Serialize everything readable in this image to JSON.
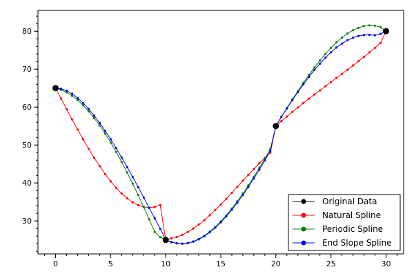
{
  "chart_data": {
    "type": "line",
    "title": "",
    "xlabel": "",
    "ylabel": "",
    "xlim": [
      -1.6,
      31.6
    ],
    "ylim": [
      21.3,
      85.5
    ],
    "x_ticks": [
      0,
      5,
      10,
      15,
      20,
      25,
      30
    ],
    "y_ticks": [
      30,
      40,
      50,
      60,
      70,
      80
    ],
    "x_minor_step": 1,
    "y_minor_step": 2,
    "grid": false,
    "legend_position": "bottom-right",
    "original_data": {
      "name": "Original Data",
      "color": "#000000",
      "x": [
        0,
        10,
        20,
        30
      ],
      "y": [
        65,
        25,
        55,
        80
      ]
    },
    "series": [
      {
        "name": "Natural Spline",
        "color": "#ff0000",
        "x": [
          0,
          0.5,
          1,
          1.5,
          2,
          2.5,
          3,
          3.5,
          4,
          4.5,
          5,
          5.5,
          6,
          6.5,
          7,
          7.5,
          8,
          8.5,
          9,
          9.5,
          10,
          10.5,
          11,
          11.5,
          12,
          12.5,
          13,
          13.5,
          14,
          14.5,
          15,
          15.5,
          16,
          16.5,
          17,
          17.5,
          18,
          18.5,
          19,
          19.5,
          20,
          20.5,
          21,
          21.5,
          22,
          22.5,
          23,
          23.5,
          24,
          24.5,
          25,
          25.5,
          26,
          26.5,
          27,
          27.5,
          28,
          28.5,
          29,
          29.5,
          30
        ],
        "y": [
          65,
          62.22,
          59.46,
          56.74,
          54.08,
          51.5,
          49.02,
          46.65,
          44.42,
          42.34,
          40.44,
          38.73,
          37.22,
          35.95,
          34.92,
          34.16,
          33.68,
          33.52,
          33.67,
          34.18,
          25,
          25.39,
          25.76,
          26.33,
          27.08,
          27.99,
          29.04,
          30.22,
          31.5,
          32.88,
          34.33,
          35.85,
          37.4,
          38.98,
          40.57,
          42.14,
          43.69,
          45.2,
          46.64,
          48.02,
          55,
          56.3,
          57.49,
          58.72,
          59.91,
          61.07,
          62.2,
          63.31,
          64.41,
          65.5,
          66.58,
          67.66,
          68.75,
          69.85,
          70.96,
          72.09,
          73.25,
          74.43,
          75.65,
          76.9,
          80
        ]
      },
      {
        "name": "Periodic Spline",
        "color": "#008000",
        "x": [
          0,
          0.5,
          1,
          1.5,
          2,
          2.5,
          3,
          3.5,
          4,
          4.5,
          5,
          5.5,
          6,
          6.5,
          7,
          7.5,
          8,
          8.5,
          9,
          9.5,
          10,
          10.5,
          11,
          11.5,
          12,
          12.5,
          13,
          13.5,
          14,
          14.5,
          15,
          15.5,
          16,
          16.5,
          17,
          17.5,
          18,
          18.5,
          19,
          19.5,
          20,
          20.5,
          21,
          21.5,
          22,
          22.5,
          23,
          23.5,
          24,
          24.5,
          25,
          25.5,
          26,
          26.5,
          27,
          27.5,
          28,
          28.5,
          29,
          29.5,
          30
        ],
        "y": [
          65,
          64.57,
          63.9,
          62.99,
          61.85,
          60.48,
          58.9,
          57.12,
          55.15,
          53.0,
          50.67,
          48.18,
          45.54,
          42.76,
          39.84,
          36.81,
          33.66,
          30.42,
          27.1,
          25.71,
          25,
          24.4,
          24.07,
          24.0,
          24.18,
          24.6,
          25.25,
          26.11,
          27.18,
          28.44,
          29.88,
          31.49,
          33.26,
          35.17,
          37.21,
          39.37,
          41.64,
          44.0,
          46.44,
          48.96,
          55,
          57.45,
          59.75,
          62.02,
          64.23,
          66.38,
          68.45,
          70.42,
          72.28,
          74.01,
          75.6,
          77.04,
          78.31,
          79.39,
          80.26,
          80.92,
          81.35,
          81.53,
          81.45,
          81.08,
          80
        ]
      },
      {
        "name": "End Slope Spline",
        "color": "#0000ff",
        "x": [
          0,
          0.5,
          1,
          1.5,
          2,
          2.5,
          3,
          3.5,
          4,
          4.5,
          5,
          5.5,
          6,
          6.5,
          7,
          7.5,
          8,
          8.5,
          9,
          9.5,
          10,
          10.5,
          11,
          11.5,
          12,
          12.5,
          13,
          13.5,
          14,
          14.5,
          15,
          15.5,
          16,
          16.5,
          17,
          17.5,
          18,
          18.5,
          19,
          19.5,
          20,
          20.5,
          21,
          21.5,
          22,
          22.5,
          23,
          23.5,
          24,
          24.5,
          25,
          25.5,
          26,
          26.5,
          27,
          27.5,
          28,
          28.5,
          29,
          29.5,
          30
        ],
        "y": [
          65,
          64.86,
          64.34,
          63.51,
          62.41,
          61.07,
          59.52,
          57.77,
          55.84,
          53.75,
          51.53,
          49.18,
          46.72,
          44.17,
          41.56,
          38.88,
          36.16,
          33.42,
          30.67,
          27.93,
          25,
          24.46,
          24.11,
          24.0,
          24.14,
          24.52,
          25.13,
          25.96,
          26.99,
          28.21,
          29.62,
          31.19,
          32.92,
          34.79,
          36.8,
          38.93,
          41.17,
          43.51,
          45.94,
          48.44,
          55,
          57.41,
          59.64,
          61.83,
          63.95,
          65.99,
          67.93,
          69.76,
          71.46,
          73.03,
          74.44,
          75.69,
          76.75,
          77.63,
          78.3,
          78.75,
          79.0,
          79.04,
          78.93,
          79.3,
          80
        ]
      }
    ]
  }
}
